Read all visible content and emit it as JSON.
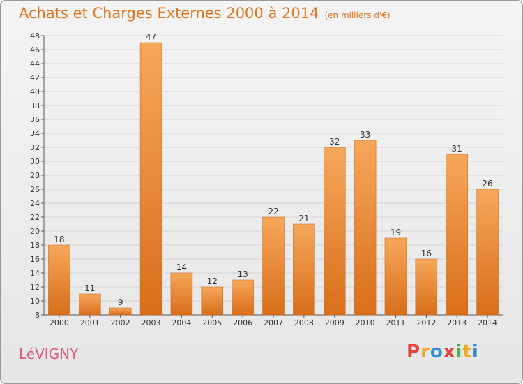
{
  "header": {
    "title": "Achats et Charges Externes 2000 à 2014",
    "subtitle": "(en milliers d'€)"
  },
  "footer": {
    "commune": "LéVIGNY",
    "logo_letters": [
      "P",
      "r",
      "o",
      "x",
      "i",
      "t",
      "i"
    ],
    "logo_colors": [
      "#e8403a",
      "#f3a51b",
      "#2f8fd5",
      "#e8403a",
      "#45b649",
      "#f3a51b",
      "#2f8fd5"
    ]
  },
  "colors": {
    "bar_top": "#f6a75a",
    "bar_bottom": "#d86e1a",
    "grid": "#d4d4d4",
    "title": "#e2761f"
  },
  "chart_data": {
    "type": "bar",
    "categories": [
      "2000",
      "2001",
      "2002",
      "2003",
      "2004",
      "2005",
      "2006",
      "2007",
      "2008",
      "2009",
      "2010",
      "2011",
      "2012",
      "2013",
      "2014"
    ],
    "values": [
      18,
      11,
      9,
      47,
      14,
      12,
      13,
      22,
      21,
      32,
      33,
      19,
      16,
      31,
      26
    ],
    "ylim": [
      8,
      48
    ],
    "yticks": [
      8,
      10,
      12,
      14,
      16,
      18,
      20,
      22,
      24,
      26,
      28,
      30,
      32,
      34,
      36,
      38,
      40,
      42,
      44,
      46,
      48
    ],
    "grid": true
  }
}
